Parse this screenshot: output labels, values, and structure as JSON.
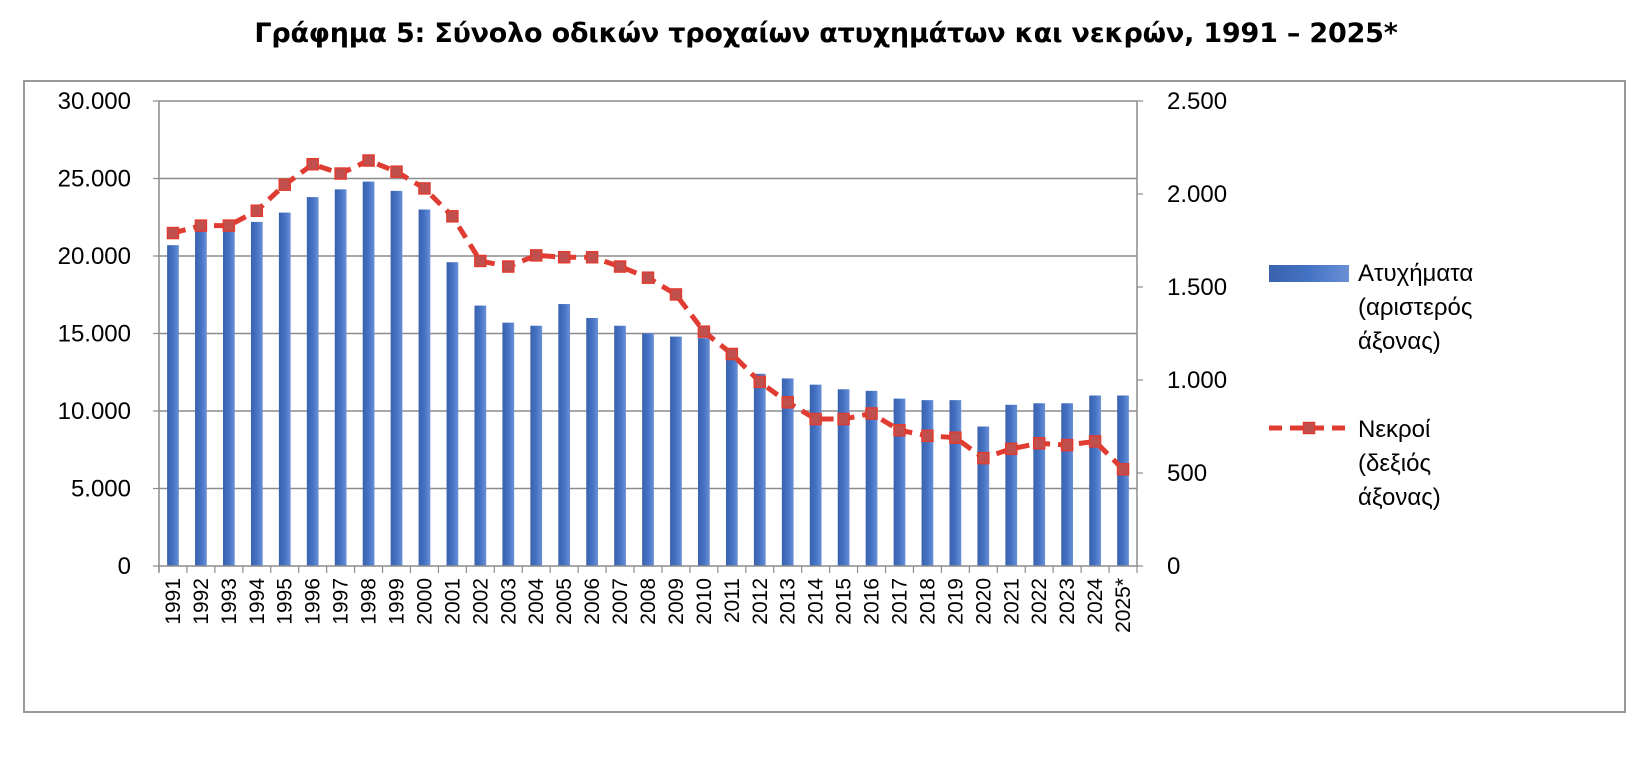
{
  "chart_data": {
    "type": "bar+line",
    "title": "Γράφημα 5: Σύνολο οδικών τροχαίων ατυχημάτων και νεκρών, 1991 – 2025*",
    "categories": [
      "1991",
      "1992",
      "1993",
      "1994",
      "1995",
      "1996",
      "1997",
      "1998",
      "1999",
      "2000",
      "2001",
      "2002",
      "2003",
      "2004",
      "2005",
      "2006",
      "2007",
      "2008",
      "2009",
      "2010",
      "2011",
      "2012",
      "2013",
      "2014",
      "2015",
      "2016",
      "2017",
      "2018",
      "2019",
      "2020",
      "2021",
      "2022",
      "2023",
      "2024",
      "2025*"
    ],
    "left_axis": {
      "ylim": [
        0,
        30000
      ],
      "ticks": [
        "0",
        "5.000",
        "10.000",
        "15.000",
        "20.000",
        "25.000",
        "30.000"
      ],
      "tick_values": [
        0,
        5000,
        10000,
        15000,
        20000,
        25000,
        30000
      ]
    },
    "right_axis": {
      "ylim": [
        0,
        2500
      ],
      "ticks": [
        "0",
        "500",
        "1.000",
        "1.500",
        "2.000",
        "2.500"
      ],
      "tick_values": [
        0,
        500,
        1000,
        1500,
        2000,
        2500
      ]
    },
    "grid": true,
    "legend_position": "right",
    "series": [
      {
        "name": "Ατυχήματα (αριστερός άξονας)",
        "legend_lines": [
          "Ατυχήματα",
          "(αριστερός",
          "άξονας)"
        ],
        "type": "bar",
        "axis": "left",
        "color": "#4472c4",
        "values": [
          20700,
          21900,
          21900,
          22200,
          22800,
          23800,
          24300,
          24800,
          24200,
          23000,
          19600,
          16800,
          15700,
          15500,
          16900,
          16000,
          15500,
          15000,
          14800,
          14700,
          14000,
          12400,
          12100,
          11700,
          11400,
          11300,
          10800,
          10700,
          10700,
          9000,
          10400,
          10500,
          10500,
          11000,
          11000
        ]
      },
      {
        "name": "Νεκροί (δεξιός άξονας)",
        "legend_lines": [
          "Νεκροί",
          "(δεξιός",
          "άξονας)"
        ],
        "type": "line",
        "axis": "right",
        "color": "#e03c31",
        "values": [
          1790,
          1830,
          1830,
          1910,
          2050,
          2160,
          2110,
          2180,
          2120,
          2030,
          1880,
          1640,
          1610,
          1670,
          1660,
          1660,
          1610,
          1550,
          1460,
          1260,
          1140,
          990,
          880,
          790,
          790,
          820,
          730,
          700,
          690,
          580,
          630,
          660,
          650,
          670,
          520
        ]
      }
    ]
  }
}
